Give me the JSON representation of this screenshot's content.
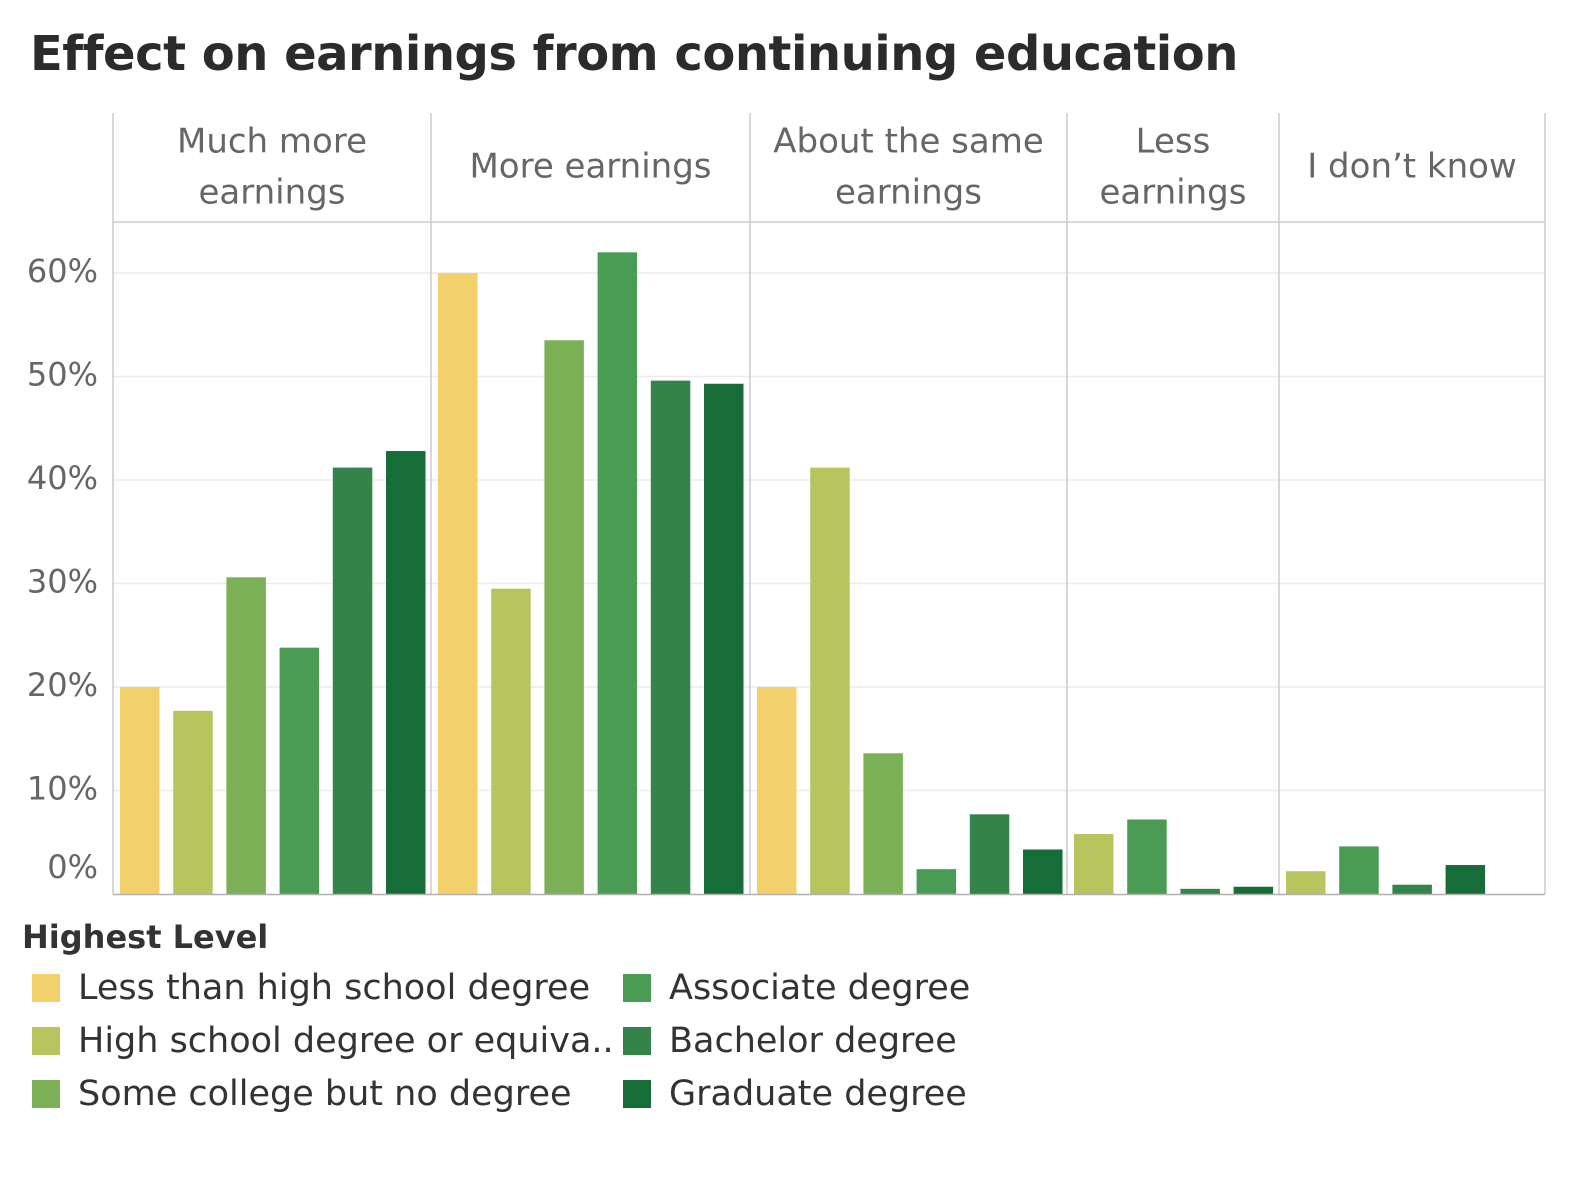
{
  "chart_data": {
    "type": "bar",
    "title": "Effect on earnings from continuing education",
    "panels": [
      "Much more earnings",
      "More earnings",
      "About the same earnings",
      "Less earnings",
      "I don’t know"
    ],
    "panel_label_lines": [
      [
        "Much more",
        "earnings"
      ],
      [
        "More earnings"
      ],
      [
        "About the same",
        "earnings"
      ],
      [
        "Less",
        "earnings"
      ],
      [
        "I don’t know"
      ]
    ],
    "yticks": [
      "0%",
      "10%",
      "20%",
      "30%",
      "40%",
      "50%",
      "60%"
    ],
    "ylim": [
      0,
      65
    ],
    "grid": true,
    "legend": {
      "title": "Highest Level",
      "placement": "bottom-left"
    },
    "series": [
      {
        "name": "Less than high school degree",
        "legend_label": "Less than high school degree",
        "color": "#F2D06B",
        "values": [
          20,
          60,
          20,
          0,
          0
        ]
      },
      {
        "name": "High school degree or equivalent",
        "legend_label": "High school degree or equiva..",
        "color": "#B8C45E",
        "values": [
          17.7,
          29.5,
          41.2,
          5.8,
          2.2
        ]
      },
      {
        "name": "Some college but no degree",
        "legend_label": "Some college but no degree",
        "color": "#7BB057",
        "values": [
          30.6,
          53.5,
          13.6,
          0,
          0
        ]
      },
      {
        "name": "Associate degree",
        "legend_label": "Associate degree",
        "color": "#4A9C55",
        "values": [
          23.8,
          62,
          2.4,
          7.2,
          4.6
        ]
      },
      {
        "name": "Bachelor degree",
        "legend_label": "Bachelor degree",
        "color": "#33834A",
        "values": [
          41.2,
          49.6,
          7.7,
          0.5,
          0.9
        ]
      },
      {
        "name": "Graduate degree",
        "legend_label": "Graduate degree",
        "color": "#176D38",
        "values": [
          42.8,
          49.3,
          4.3,
          0.7,
          2.8
        ]
      }
    ]
  }
}
